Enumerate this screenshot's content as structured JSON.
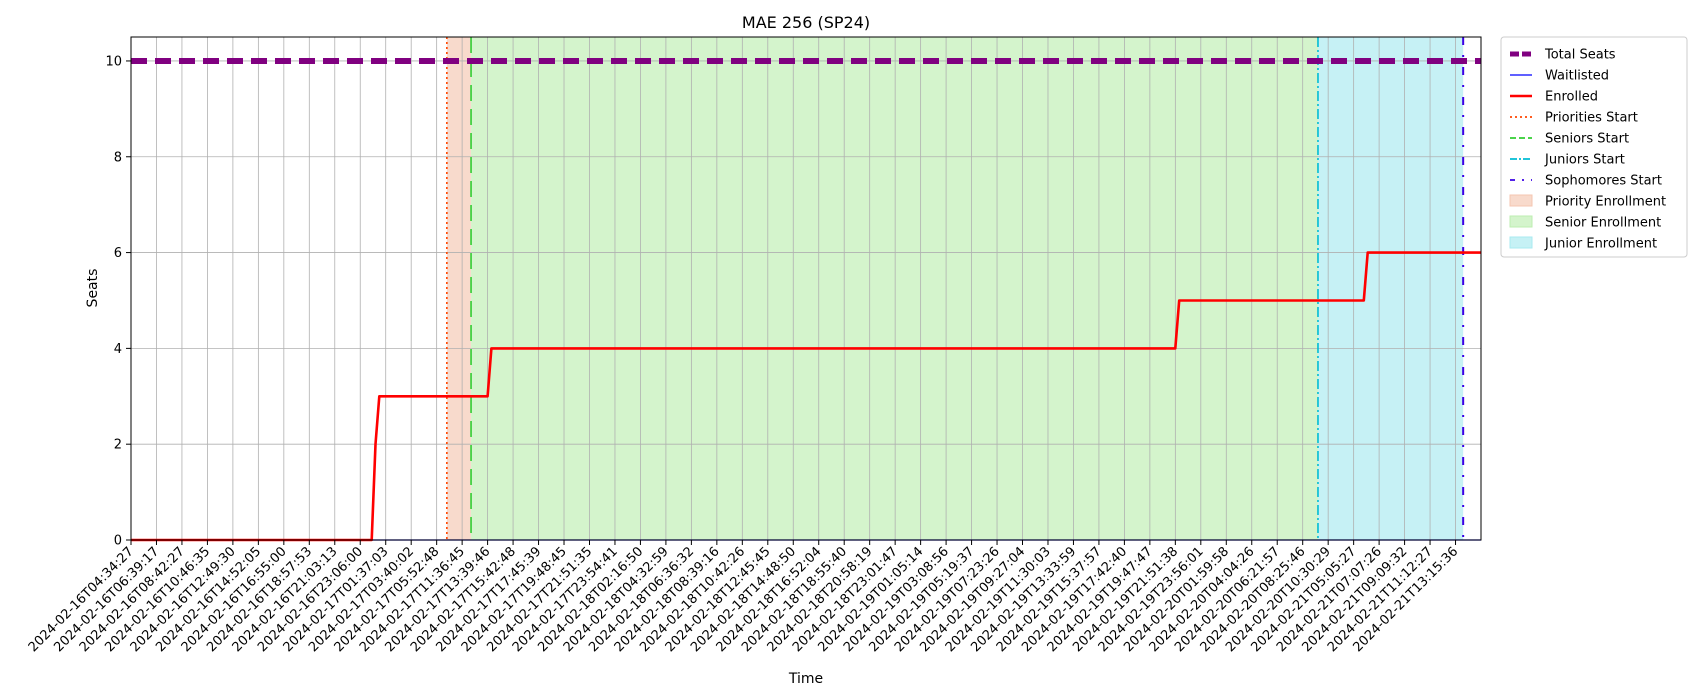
{
  "chart_data": {
    "type": "line",
    "title": "MAE 256 (SP24)",
    "xlabel": "Time",
    "ylabel": "Seats",
    "ylim": [
      0,
      10.5
    ],
    "yticks": [
      0,
      2,
      4,
      6,
      8,
      10
    ],
    "grid": true,
    "legend_placement": "outside-top-right",
    "xlim": [
      "2024-02-16T04:34:27",
      "2024-02-21T13:48:00"
    ],
    "x_ticks": [
      "2024-02-16T04:34:27",
      "2024-02-16T06:39:17",
      "2024-02-16T08:42:27",
      "2024-02-16T10:46:35",
      "2024-02-16T12:49:30",
      "2024-02-16T14:52:05",
      "2024-02-16T16:55:00",
      "2024-02-16T18:57:53",
      "2024-02-16T21:03:13",
      "2024-02-16T23:06:00",
      "2024-02-17T01:37:03",
      "2024-02-17T03:40:02",
      "2024-02-17T05:52:48",
      "2024-02-17T11:36:45",
      "2024-02-17T13:39:46",
      "2024-02-17T15:42:48",
      "2024-02-17T17:45:39",
      "2024-02-17T19:48:45",
      "2024-02-17T21:51:35",
      "2024-02-17T23:54:41",
      "2024-02-18T02:16:50",
      "2024-02-18T04:32:59",
      "2024-02-18T06:36:32",
      "2024-02-18T08:39:16",
      "2024-02-18T10:42:26",
      "2024-02-18T12:45:45",
      "2024-02-18T14:48:50",
      "2024-02-18T16:52:04",
      "2024-02-18T18:55:40",
      "2024-02-18T20:58:19",
      "2024-02-18T23:01:47",
      "2024-02-19T01:05:14",
      "2024-02-19T03:08:56",
      "2024-02-19T05:19:37",
      "2024-02-19T07:23:26",
      "2024-02-19T09:27:04",
      "2024-02-19T11:30:03",
      "2024-02-19T13:33:59",
      "2024-02-19T15:37:57",
      "2024-02-19T17:42:40",
      "2024-02-19T19:47:47",
      "2024-02-19T21:51:38",
      "2024-02-19T23:56:01",
      "2024-02-20T01:59:58",
      "2024-02-20T04:04:26",
      "2024-02-20T06:21:57",
      "2024-02-20T08:25:46",
      "2024-02-20T10:30:29",
      "2024-02-21T05:05:27",
      "2024-02-21T07:07:26",
      "2024-02-21T09:09:32",
      "2024-02-21T11:12:27",
      "2024-02-21T13:15:36"
    ],
    "series": [
      {
        "name": "Total Seats",
        "color": "#800080",
        "style": "dashed",
        "points": [
          [
            0,
            10
          ],
          [
            53,
            10
          ]
        ]
      },
      {
        "name": "Waitlisted",
        "color": "#0000ff",
        "style": "solid",
        "points": [
          [
            0,
            0
          ],
          [
            53,
            0
          ]
        ]
      },
      {
        "name": "Enrolled",
        "color": "#ff0000",
        "style": "solid",
        "points": [
          [
            0,
            0
          ],
          [
            9.45,
            0
          ],
          [
            9.6,
            2
          ],
          [
            9.75,
            3
          ],
          [
            14.0,
            3
          ],
          [
            14.15,
            4
          ],
          [
            41.0,
            4
          ],
          [
            41.15,
            5
          ],
          [
            48.4,
            5
          ],
          [
            48.55,
            6
          ],
          [
            53,
            6
          ]
        ]
      }
    ],
    "event_lines": [
      {
        "name": "Priorities Start",
        "color": "#ff4500",
        "style": "dotted",
        "x": 12.4
      },
      {
        "name": "Seniors Start",
        "color": "#32cd32",
        "style": "dashed",
        "x": 13.35
      },
      {
        "name": "Juniors Start",
        "color": "#00bcd4",
        "style": "dashdot",
        "x": 46.6
      },
      {
        "name": "Sophomores Start",
        "color": "#3a00e5",
        "style": "dashdot-loose",
        "x": 52.3
      }
    ],
    "spans": [
      {
        "name": "Priority Enrollment",
        "color": "#f5c6b0",
        "from": 12.4,
        "to": 13.35
      },
      {
        "name": "Senior Enrollment",
        "color": "#bdeeb0",
        "from": 13.35,
        "to": 46.6
      },
      {
        "name": "Junior Enrollment",
        "color": "#a8eaf0",
        "from": 46.6,
        "to": 52.3
      }
    ],
    "legend": [
      {
        "label": "Total Seats",
        "kind": "line",
        "color": "#800080",
        "style": "dashed-thick"
      },
      {
        "label": "Waitlisted",
        "kind": "line",
        "color": "#0000ff",
        "style": "solid-thin"
      },
      {
        "label": "Enrolled",
        "kind": "line",
        "color": "#ff0000",
        "style": "solid"
      },
      {
        "label": "Priorities Start",
        "kind": "line",
        "color": "#ff4500",
        "style": "dotted"
      },
      {
        "label": "Seniors Start",
        "kind": "line",
        "color": "#32cd32",
        "style": "dashed"
      },
      {
        "label": "Juniors Start",
        "kind": "line",
        "color": "#00bcd4",
        "style": "dashdot"
      },
      {
        "label": "Sophomores Start",
        "kind": "line",
        "color": "#3a00e5",
        "style": "dashdot-loose"
      },
      {
        "label": "Priority Enrollment",
        "kind": "patch",
        "color": "#f5c6b0"
      },
      {
        "label": "Senior Enrollment",
        "kind": "patch",
        "color": "#bdeeb0"
      },
      {
        "label": "Junior Enrollment",
        "kind": "patch",
        "color": "#a8eaf0"
      }
    ]
  }
}
